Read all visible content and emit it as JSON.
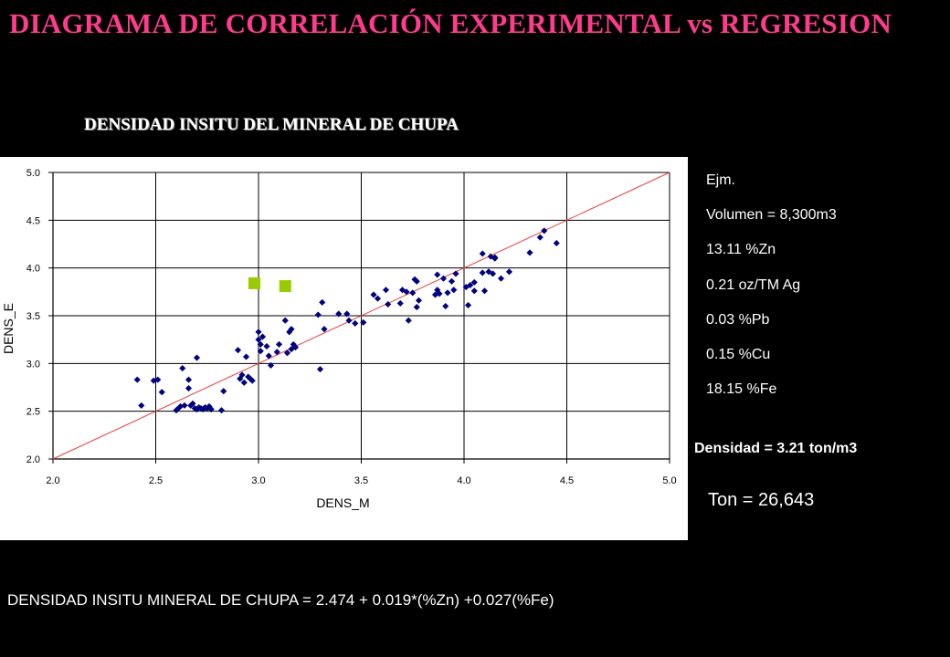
{
  "title": "DIAGRAMA DE CORRELACIÓN EXPERIMENTAL  vs  REGRESION",
  "subtitle": "DENSIDAD INSITU DEL MINERAL DE CHUPA",
  "example": {
    "label": "Ejm.",
    "lines": [
      "Volumen = 8,300m3",
      "13.11 %Zn",
      "0.21 oz/TM Ag",
      "0.03 %Pb",
      "0.15 %Cu",
      "18.15 %Fe"
    ]
  },
  "density_result": "Densidad = 3.21 ton/m3",
  "tons_result": "Ton  = 26,643",
  "formula": "DENSIDAD INSITU MINERAL DE CHUPA = 2.474 + 0.019*(%Zn) +0.027(%Fe)",
  "colors": {
    "title": "#ff3c8c",
    "points": "#000080",
    "outliers": "#99cc00",
    "line": "#e8403c"
  },
  "chart_data": {
    "type": "scatter",
    "xlabel": "DENS_M",
    "ylabel": "DENS_E",
    "xlim": [
      2.0,
      5.0
    ],
    "ylim": [
      2.0,
      5.0
    ],
    "xticks": [
      "2.0",
      "2.5",
      "3.0",
      "3.5",
      "4.0",
      "4.5",
      "5.0"
    ],
    "yticks": [
      "2.0",
      "2.5",
      "3.0",
      "3.5",
      "4.0",
      "4.5",
      "5.0"
    ],
    "grid": true,
    "reference_line": {
      "x": [
        2.0,
        5.0
      ],
      "y": [
        2.0,
        5.0
      ]
    },
    "series": [
      {
        "points": [
          [
            2.41,
            2.83
          ],
          [
            2.43,
            2.56
          ],
          [
            2.49,
            2.82
          ],
          [
            2.51,
            2.83
          ],
          [
            2.53,
            2.7
          ],
          [
            2.6,
            2.51
          ],
          [
            2.61,
            2.53
          ],
          [
            2.62,
            2.55
          ],
          [
            2.63,
            2.95
          ],
          [
            2.64,
            2.56
          ],
          [
            2.66,
            2.83
          ],
          [
            2.66,
            2.74
          ],
          [
            2.67,
            2.56
          ],
          [
            2.68,
            2.58
          ],
          [
            2.69,
            2.53
          ],
          [
            2.7,
            2.52
          ],
          [
            2.71,
            2.54
          ],
          [
            2.72,
            2.53
          ],
          [
            2.73,
            2.52
          ],
          [
            2.74,
            2.54
          ],
          [
            2.75,
            2.53
          ],
          [
            2.76,
            2.55
          ],
          [
            2.77,
            2.52
          ],
          [
            2.7,
            3.06
          ],
          [
            2.82,
            2.51
          ],
          [
            2.83,
            2.71
          ],
          [
            2.9,
            3.14
          ],
          [
            2.91,
            2.84
          ],
          [
            2.92,
            2.88
          ],
          [
            2.93,
            2.8
          ],
          [
            2.94,
            3.07
          ],
          [
            2.95,
            2.86
          ],
          [
            2.96,
            2.84
          ],
          [
            2.97,
            2.82
          ],
          [
            3.0,
            3.33
          ],
          [
            3.0,
            3.25
          ],
          [
            3.01,
            3.2
          ],
          [
            3.01,
            3.13
          ],
          [
            3.02,
            3.28
          ],
          [
            3.04,
            3.18
          ],
          [
            3.05,
            3.08
          ],
          [
            3.06,
            2.98
          ],
          [
            3.09,
            3.12
          ],
          [
            3.1,
            3.2
          ],
          [
            3.13,
            3.45
          ],
          [
            3.14,
            3.11
          ],
          [
            3.15,
            3.33
          ],
          [
            3.16,
            3.36
          ],
          [
            3.16,
            3.15
          ],
          [
            3.17,
            3.2
          ],
          [
            3.18,
            3.17
          ],
          [
            3.29,
            3.51
          ],
          [
            3.3,
            2.94
          ],
          [
            3.31,
            3.64
          ],
          [
            3.32,
            3.36
          ],
          [
            3.39,
            3.52
          ],
          [
            3.43,
            3.52
          ],
          [
            3.44,
            3.45
          ],
          [
            3.47,
            3.42
          ],
          [
            3.51,
            3.43
          ],
          [
            3.56,
            3.72
          ],
          [
            3.58,
            3.68
          ],
          [
            3.62,
            3.77
          ],
          [
            3.63,
            3.62
          ],
          [
            3.69,
            3.63
          ],
          [
            3.7,
            3.77
          ],
          [
            3.72,
            3.75
          ],
          [
            3.73,
            3.45
          ],
          [
            3.75,
            3.74
          ],
          [
            3.76,
            3.88
          ],
          [
            3.77,
            3.86
          ],
          [
            3.77,
            3.59
          ],
          [
            3.78,
            3.66
          ],
          [
            3.86,
            3.72
          ],
          [
            3.87,
            3.93
          ],
          [
            3.87,
            3.77
          ],
          [
            3.88,
            3.73
          ],
          [
            3.9,
            3.89
          ],
          [
            3.91,
            3.6
          ],
          [
            3.92,
            3.74
          ],
          [
            3.94,
            3.86
          ],
          [
            3.95,
            3.77
          ],
          [
            3.96,
            3.94
          ],
          [
            4.01,
            3.8
          ],
          [
            4.02,
            3.61
          ],
          [
            4.03,
            3.82
          ],
          [
            4.05,
            3.85
          ],
          [
            4.05,
            3.76
          ],
          [
            4.09,
            4.15
          ],
          [
            4.09,
            3.95
          ],
          [
            4.1,
            3.76
          ],
          [
            4.12,
            3.96
          ],
          [
            4.13,
            4.12
          ],
          [
            4.14,
            3.94
          ],
          [
            4.15,
            4.1
          ],
          [
            4.15,
            4.11
          ],
          [
            4.18,
            3.89
          ],
          [
            4.22,
            3.96
          ],
          [
            4.32,
            4.16
          ],
          [
            4.37,
            4.32
          ],
          [
            4.39,
            4.39
          ],
          [
            4.45,
            4.26
          ]
        ]
      },
      {
        "points": [
          [
            2.98,
            3.84
          ],
          [
            3.13,
            3.81
          ]
        ]
      }
    ]
  }
}
